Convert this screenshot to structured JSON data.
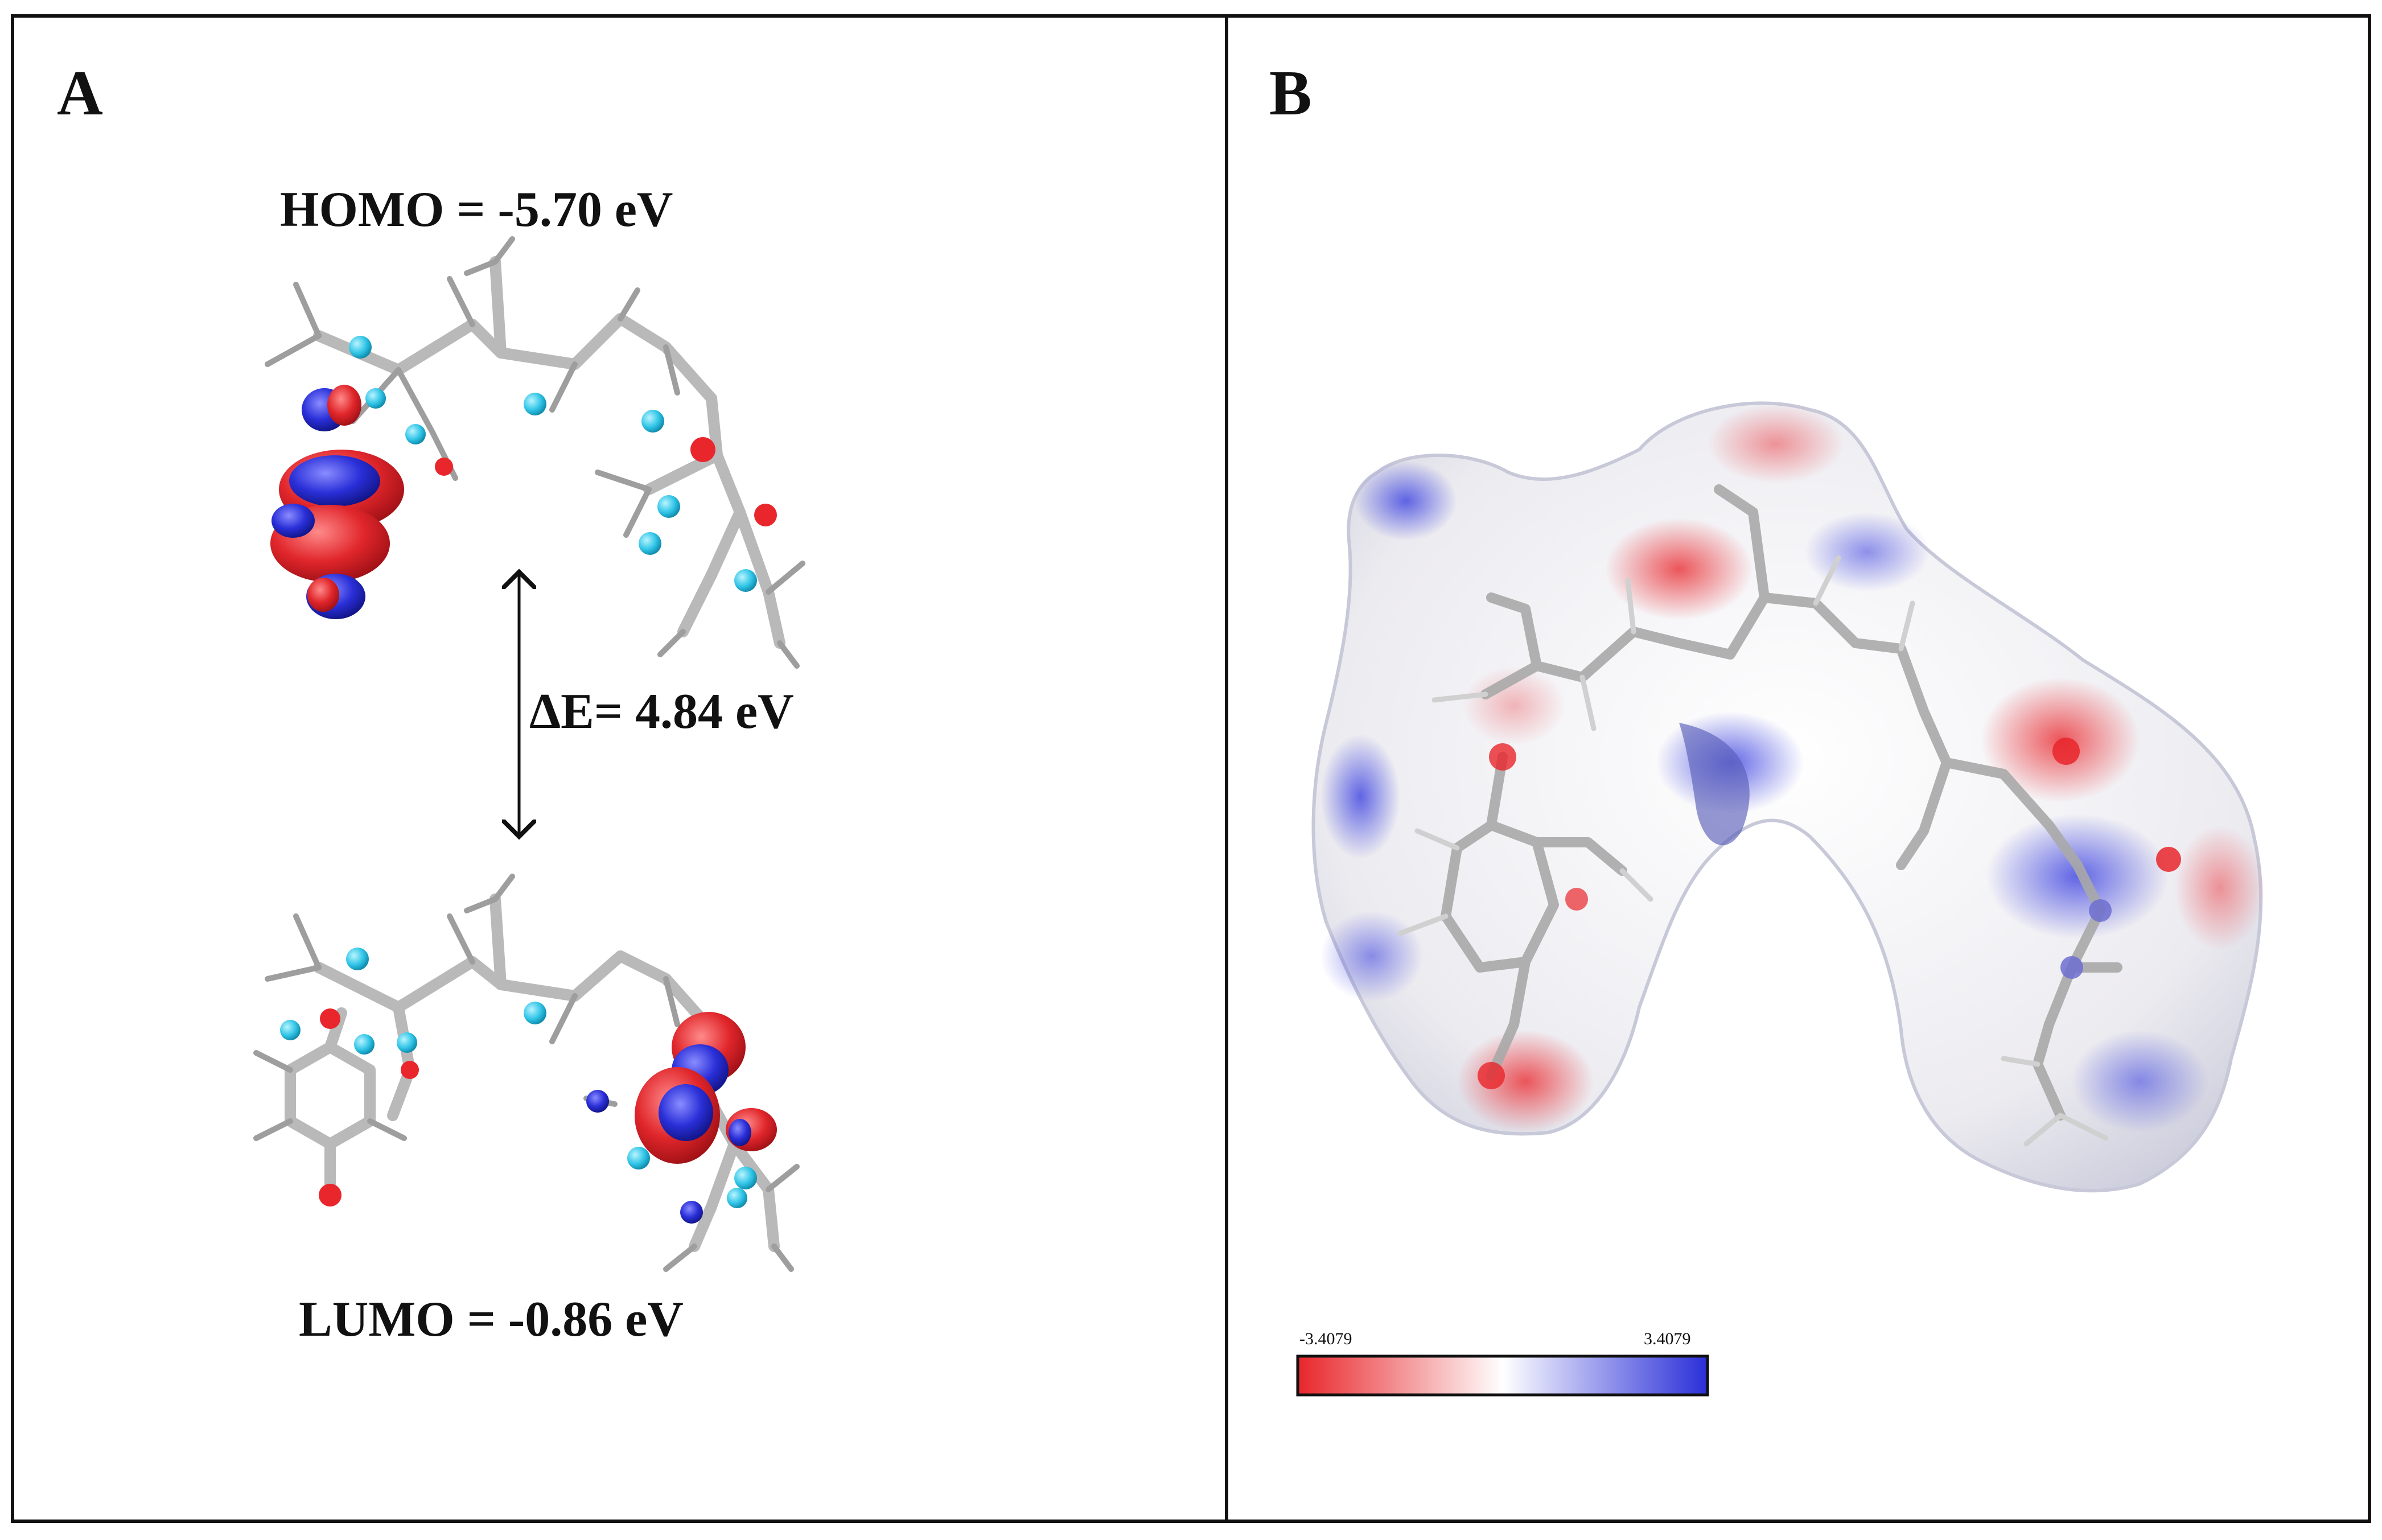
{
  "panel_a": {
    "letter": "A",
    "homo_label": "HOMO = -5.70 eV",
    "gap_label": "ΔE=  4.84 eV",
    "lumo_label": "LUMO = -0.86 eV"
  },
  "panel_b": {
    "letter": "B",
    "scale_min": "-3.4079",
    "scale_max": "3.4079"
  },
  "colors": {
    "negative": "#e8262b",
    "neutral": "#ffffff",
    "positive": "#2a2fd8",
    "atom_highlight": "#2fc4e6"
  }
}
